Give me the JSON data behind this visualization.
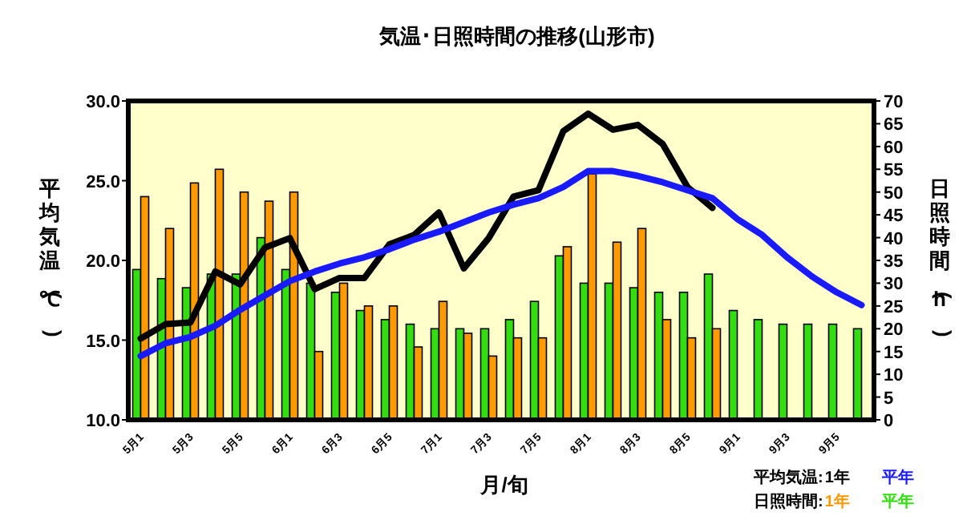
{
  "chart_data": {
    "type": "bar",
    "title": "気温･日照時間の推移(山形市)",
    "xlabel": "月/旬",
    "ylabel": "平均気温(℃)",
    "y2label": "日照時間(h)",
    "categories": [
      "5月1",
      null,
      "5月3",
      null,
      "5月5",
      null,
      "6月1",
      null,
      "6月3",
      null,
      "6月5",
      null,
      "7月1",
      null,
      "7月3",
      null,
      "7月5",
      null,
      "8月1",
      null,
      "8月3",
      null,
      "8月5",
      null,
      "9月1",
      null,
      "9月3",
      null,
      "9月5",
      null
    ],
    "series": [
      {
        "name": "1年",
        "type": "line",
        "axis": "y",
        "color": "#000000",
        "values": [
          15.1,
          16.0,
          16.1,
          19.3,
          18.5,
          20.8,
          21.4,
          18.2,
          18.9,
          18.9,
          21.0,
          21.6,
          23.0,
          19.5,
          21.4,
          24.0,
          24.4,
          28.1,
          29.2,
          28.2,
          28.5,
          27.3,
          24.6,
          23.3,
          null,
          null,
          null,
          null,
          null,
          null
        ]
      },
      {
        "name": "平年",
        "type": "line",
        "axis": "y",
        "color": "#1a1aff",
        "values": [
          14.0,
          14.8,
          15.2,
          15.9,
          16.9,
          17.8,
          18.7,
          19.3,
          19.8,
          20.2,
          20.7,
          21.3,
          21.8,
          22.4,
          23.0,
          23.5,
          23.9,
          24.6,
          25.6,
          25.6,
          25.3,
          24.9,
          24.4,
          23.9,
          22.6,
          21.6,
          20.2,
          19.0,
          18.0,
          17.2
        ]
      },
      {
        "name": "平年",
        "axis": "y2",
        "color": "#33dd11",
        "values": [
          33,
          31,
          29,
          32,
          32,
          40,
          33,
          30,
          28,
          24,
          22,
          21,
          20,
          20,
          20,
          22,
          26,
          36,
          30,
          30,
          29,
          28,
          28,
          32,
          24,
          22,
          21,
          21,
          21,
          20
        ]
      },
      {
        "name": "1年",
        "axis": "y2",
        "color": "#ff9900",
        "values": [
          49,
          42,
          52,
          55,
          50,
          48,
          50,
          15,
          30,
          25,
          25,
          16,
          26,
          19,
          14,
          18,
          18,
          38,
          54,
          39,
          42,
          22,
          18,
          20,
          null,
          null,
          null,
          null,
          null,
          null
        ]
      }
    ],
    "ylim": [
      10,
      30
    ],
    "yticks": [
      {
        "value": 10,
        "label": "10.0"
      },
      {
        "value": 15,
        "label": "15.0"
      },
      {
        "value": 20,
        "label": "20.0"
      },
      {
        "value": 25,
        "label": "25.0"
      },
      {
        "value": 30,
        "label": "30.0"
      }
    ],
    "y2lim": [
      0,
      70
    ],
    "y2ticks": [
      0,
      5,
      10,
      15,
      20,
      25,
      30,
      35,
      40,
      45,
      50,
      55,
      60,
      65,
      70
    ],
    "annotations": [
      "平均気温:",
      "日照時間:"
    ],
    "legend": "bottom right"
  }
}
